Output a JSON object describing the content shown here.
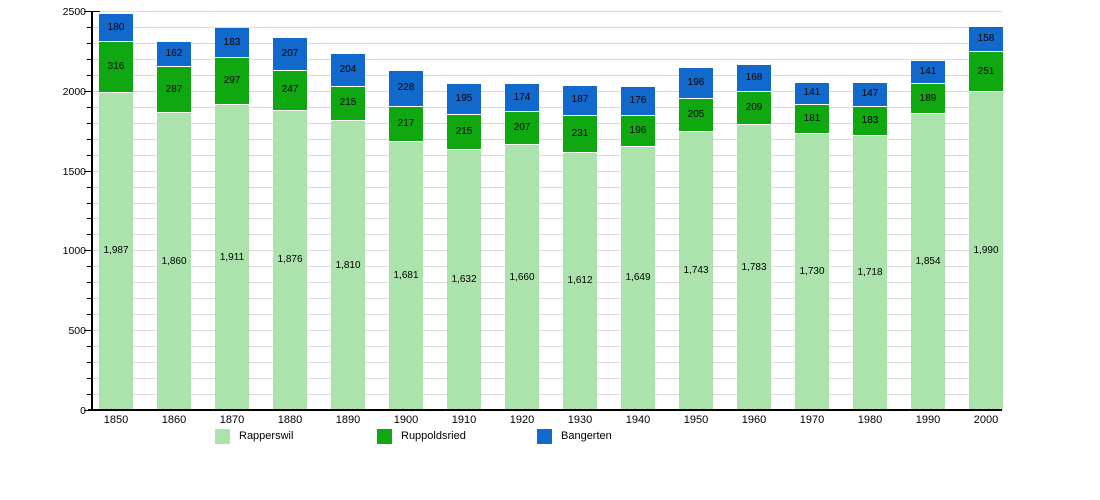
{
  "chart_data": {
    "type": "bar",
    "stacked": true,
    "title": "",
    "categories": [
      "1850",
      "1860",
      "1870",
      "1880",
      "1890",
      "1900",
      "1910",
      "1920",
      "1930",
      "1940",
      "1950",
      "1960",
      "1970",
      "1980",
      "1990",
      "2000"
    ],
    "series": [
      {
        "name": "Rapperswil",
        "color": "#ace3ac",
        "values": [
          1987,
          1860,
          1911,
          1876,
          1810,
          1681,
          1632,
          1660,
          1612,
          1649,
          1743,
          1783,
          1730,
          1718,
          1854,
          1990
        ],
        "value_labels": [
          "1,987",
          "1,860",
          "1,911",
          "1,876",
          "1,810",
          "1,681",
          "1,632",
          "1,660",
          "1,612",
          "1,649",
          "1,743",
          "1,783",
          "1,730",
          "1,718",
          "1,854",
          "1,990"
        ]
      },
      {
        "name": "Ruppoldsried",
        "color": "#10a810",
        "values": [
          316,
          287,
          297,
          247,
          215,
          217,
          215,
          207,
          231,
          196,
          205,
          209,
          181,
          183,
          189,
          251
        ],
        "value_labels": [
          "316",
          "287",
          "297",
          "247",
          "215",
          "217",
          "215",
          "207",
          "231",
          "196",
          "205",
          "209",
          "181",
          "183",
          "189",
          "251"
        ]
      },
      {
        "name": "Bangerten",
        "color": "#1169cb",
        "values": [
          180,
          162,
          183,
          207,
          204,
          228,
          195,
          174,
          187,
          176,
          196,
          168,
          141,
          147,
          141,
          158
        ],
        "value_labels": [
          "180",
          "162",
          "183",
          "207",
          "204",
          "228",
          "195",
          "174",
          "187",
          "176",
          "196",
          "168",
          "141",
          "147",
          "141",
          "158"
        ]
      }
    ],
    "ylim": [
      0,
      2500
    ],
    "y_tick_labels": [
      "0",
      "500",
      "1000",
      "1500",
      "2000",
      "2500"
    ],
    "y_major_step": 500,
    "y_minor_step": 100,
    "grid": "horizontal minor gridlines every 100",
    "legend_position": "bottom",
    "xlabel": "",
    "ylabel": ""
  },
  "colors": {
    "background": "#ffffff",
    "gridline": "#dcdcdc",
    "axis": "#000000",
    "label_text": "#000000"
  }
}
